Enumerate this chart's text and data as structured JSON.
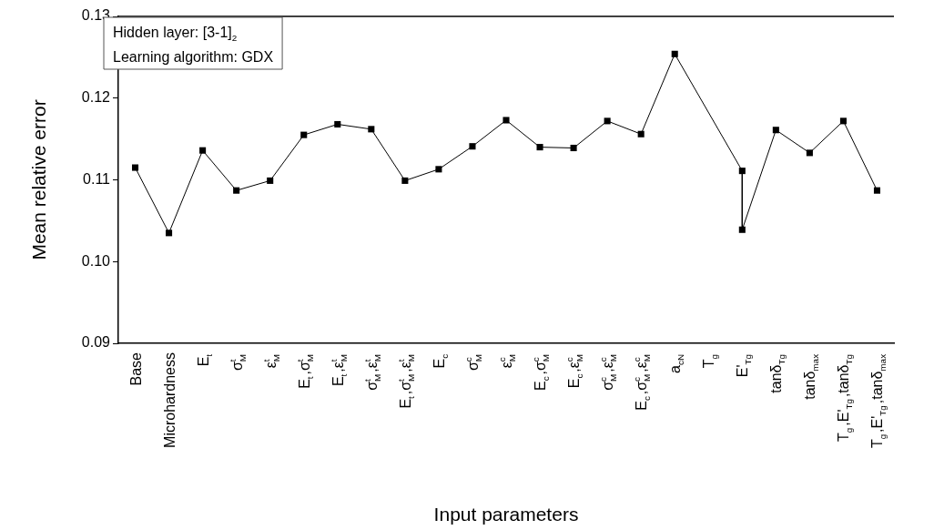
{
  "chart_data": {
    "type": "line",
    "xlabel": "Input parameters",
    "ylabel": "Mean relative error",
    "categories": [
      "Base",
      "Microhardness",
      "E$_{t}$",
      "σ$^{t}$$_{M}$",
      "ε$^{t}$$_{M}$",
      "E$_{t}$,σ$^{t}$$_{M}$",
      "E$_{t}$,ε$^{t}$$_{M}$",
      "σ$^{t}$$_{M}$,ε$^{t}$$_{M}$",
      "E$_{t}$,σ$^{t}$$_{M}$,ε$^{t}$$_{M}$",
      "E$_{c}$",
      "σ$^{c}$$_{M}$",
      "ε$^{c}$$_{M}$",
      "E$_{c}$,σ$^{c}$$_{M}$",
      "E$_{c}$,ε$^{c}$$_{M}$",
      "σ$^{c}$$_{M}$,ε$^{c}$$_{M}$",
      "E$_{c}$,σ$^{c}$$_{M}$,ε$^{c}$$_{M}$",
      "a$_{cN}$",
      "T$_{g}$",
      "E'$_{Tg}$",
      "tanδ$_{Tg}$",
      "tanδ$_{max}$",
      "T$_{g}$,E'$_{Tg}$,tanδ$_{Tg}$",
      "T$_{g}$,E'$_{Tg}$,tanδ$_{max}$"
    ],
    "series": [
      {
        "color": "#000000",
        "x": [
          "Base",
          "Microhardness",
          "E$_{t}$",
          "σ$^{t}$$_{M}$",
          "ε$^{t}$$_{M}$",
          "E$_{t}$,σ$^{t}$$_{M}$",
          "E$_{t}$,ε$^{t}$$_{M}$",
          "σ$^{t}$$_{M}$,ε$^{t}$$_{M}$",
          "E$_{t}$,σ$^{t}$$_{M}$,ε$^{t}$$_{M}$",
          "E$_{c}$",
          "σ$^{c}$$_{M}$",
          "ε$^{c}$$_{M}$",
          "E$_{c}$,σ$^{c}$$_{M}$",
          "E$_{c}$,ε$^{c}$$_{M}$",
          "σ$^{c}$$_{M}$,ε$^{c}$$_{M}$",
          "E$_{c}$,σ$^{c}$$_{M}$,ε$^{c}$$_{M}$",
          "a$_{cN}$",
          "E'$_{Tg}$",
          "E'$_{Tg}$",
          "tanδ$_{Tg}$",
          "tanδ$_{max}$",
          "T$_{g}$,E'$_{Tg}$,tanδ$_{Tg}$",
          "T$_{g}$,E'$_{Tg}$,tanδ$_{max}$"
        ],
        "values": [
          0.1115,
          0.1035,
          0.1136,
          0.1087,
          0.1099,
          0.1155,
          0.1168,
          0.1162,
          0.1099,
          0.1113,
          0.1141,
          0.1173,
          0.114,
          0.1139,
          0.1172,
          0.1156,
          0.1254,
          0.1111,
          0.1039,
          0.1161,
          0.1133,
          0.1172,
          0.1087
        ]
      }
    ],
    "ylim": [
      0.09,
      0.13
    ],
    "yticks": [
      {
        "value": 0.09,
        "label": "0.09"
      },
      {
        "value": 0.1,
        "label": "0.10"
      },
      0.11,
      0.12,
      0.13
    ],
    "annotations": [
      "Hidden layer: [3-1]$_{2}$",
      "Learning algorithm: GDX"
    ],
    "grid": false,
    "legend": false,
    "marker": "square",
    "line_style": "solid"
  }
}
